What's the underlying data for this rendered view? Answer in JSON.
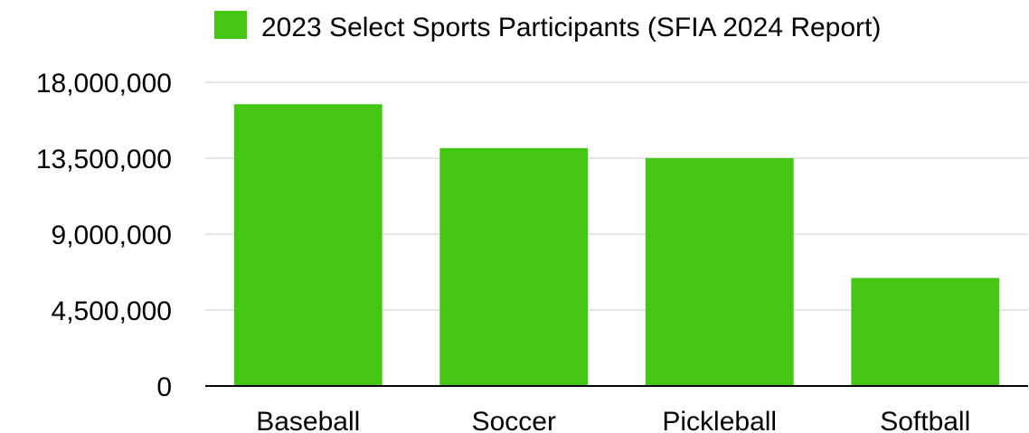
{
  "chart_data": {
    "type": "bar",
    "categories": [
      "Baseball",
      "Soccer",
      "Pickleball",
      "Softball"
    ],
    "series": [
      {
        "name": "2023 Select Sports Participants (SFIA 2024 Report)",
        "values": [
          16700000,
          14100000,
          13500000,
          6400000
        ],
        "color": "#44c712"
      }
    ],
    "ylim": [
      0,
      18000000
    ],
    "yticks": [
      0,
      4500000,
      9000000,
      13500000,
      18000000
    ],
    "ytick_labels": [
      "0",
      "4,500,000",
      "9,000,000",
      "13,500,000",
      "18,000,000"
    ],
    "grid": true,
    "legend_position": "top"
  }
}
